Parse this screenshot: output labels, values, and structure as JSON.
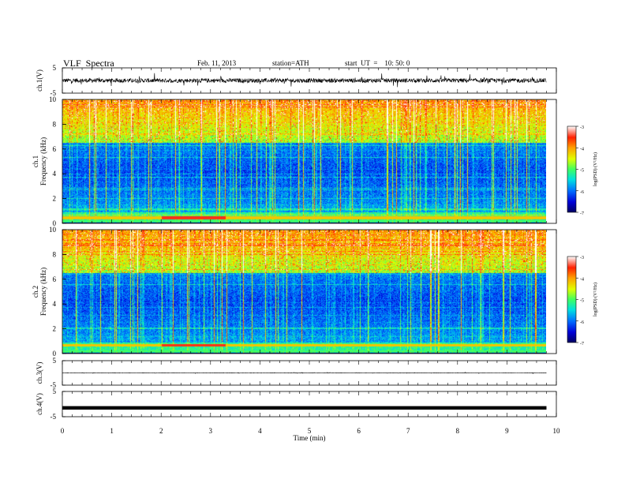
{
  "header": {
    "title": "VLF  Spectra",
    "date": "Feb. 11, 2013",
    "station": "station=ATH",
    "start": "start  UT  =    10: 50: 0"
  },
  "colors": {
    "spectrogram_scale": [
      "#000060",
      "#0000d8",
      "#0070ff",
      "#00e0e0",
      "#40ff60",
      "#e0ff00",
      "#ffa000",
      "#ff2000",
      "#ffffff"
    ]
  },
  "chart_data": [
    {
      "type": "line",
      "panel": "ch1-waveform",
      "ylabel": "ch.1(V)",
      "yticks": [
        "5",
        "-5"
      ],
      "ylim": [
        -5,
        5
      ],
      "xlim": [
        0,
        10
      ],
      "trace_end_min": 9.8,
      "series": [
        {
          "baseline": 0,
          "noise_amplitude": 1.2
        }
      ]
    },
    {
      "type": "heatmap",
      "panel": "ch1-spectrogram",
      "ylabel": [
        "ch.1",
        "Frequency (kHz)"
      ],
      "yticks": [
        "10",
        "8",
        "6",
        "4",
        "2",
        "0"
      ],
      "ylim": [
        0,
        10
      ],
      "xlim": [
        0,
        9.8
      ],
      "colorbar": {
        "label": "log(PSD) (V²/Hz)",
        "range": [
          -7,
          -3
        ],
        "ticks": [
          "-3",
          "-4",
          "-5",
          "-6",
          "-7"
        ]
      },
      "features": {
        "strong_band_khz": 0.5,
        "strong_band_window_min": [
          2.0,
          3.3
        ],
        "dark_band_khz": [
          1.5,
          6.5
        ],
        "noisy_band_khz": [
          6.5,
          10
        ]
      }
    },
    {
      "type": "heatmap",
      "panel": "ch2-spectrogram",
      "ylabel": [
        "ch.2",
        "Frequency (kHz)"
      ],
      "yticks": [
        "10",
        "8",
        "6",
        "4",
        "2",
        "0"
      ],
      "ylim": [
        0,
        10
      ],
      "xlim": [
        0,
        9.8
      ],
      "colorbar": {
        "label": "log(PSD) (V²/Hz)",
        "range": [
          -7,
          -3
        ],
        "ticks": [
          "-3",
          "-4",
          "-5",
          "-6",
          "-7"
        ]
      },
      "features": {
        "strong_band_khz": 0.7,
        "strong_band_window_min": [
          2.0,
          3.3
        ],
        "dark_band_khz": [
          1.5,
          6.5
        ],
        "noisy_band_khz": [
          6.5,
          10
        ]
      }
    },
    {
      "type": "line",
      "panel": "ch3-waveform",
      "ylabel": "ch.3(V)",
      "yticks": [
        "5",
        "-5"
      ],
      "ylim": [
        -5,
        5
      ],
      "xlim": [
        0,
        10
      ],
      "trace_end_min": 9.8,
      "series": [
        {
          "baseline": 0,
          "noise_amplitude": 0.1
        }
      ]
    },
    {
      "type": "line",
      "panel": "ch4-waveform",
      "ylabel": "ch.4(V)",
      "yticks": [
        "5",
        "-5"
      ],
      "ylim": [
        -5,
        5
      ],
      "xlim": [
        0,
        10
      ],
      "trace_end_min": 9.8,
      "series": [
        {
          "baseline": -1.5,
          "noise_amplitude": 0.4
        }
      ]
    }
  ],
  "xaxis": {
    "label": "Time  (min)",
    "ticks": [
      "0",
      "1",
      "2",
      "3",
      "4",
      "5",
      "6",
      "7",
      "8",
      "9",
      "10"
    ],
    "range": [
      0,
      10
    ]
  }
}
